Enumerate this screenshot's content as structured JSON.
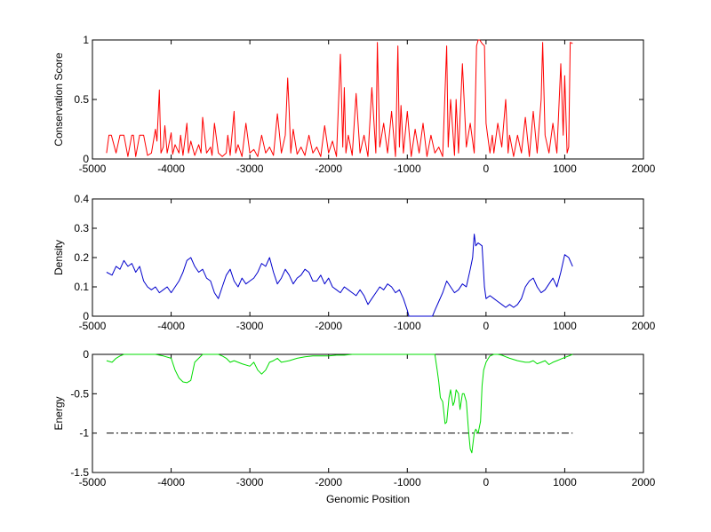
{
  "chart_data": [
    {
      "type": "line",
      "ylabel": "Conservation Score",
      "xlabel": "",
      "xlim": [
        -5000,
        2000
      ],
      "ylim": [
        0,
        1
      ],
      "xticks": [
        -5000,
        -4000,
        -3000,
        -2000,
        -1000,
        0,
        1000,
        2000
      ],
      "xtick_labels": [
        "-5000",
        "-4000",
        "-3000",
        "-2000",
        "-1000",
        "0",
        "1000",
        "2000"
      ],
      "yticks": [
        0,
        0.5,
        1
      ],
      "ytick_labels": [
        "0",
        "0.5",
        "1"
      ],
      "grid": false,
      "series": [
        {
          "color": "#ff0000",
          "x": [
            -4820,
            -4790,
            -4760,
            -4700,
            -4650,
            -4600,
            -4550,
            -4500,
            -4480,
            -4450,
            -4400,
            -4350,
            -4300,
            -4250,
            -4200,
            -4180,
            -4150,
            -4140,
            -4130,
            -4100,
            -4080,
            -4050,
            -4000,
            -3980,
            -3950,
            -3900,
            -3880,
            -3850,
            -3800,
            -3780,
            -3750,
            -3700,
            -3650,
            -3620,
            -3600,
            -3550,
            -3500,
            -3480,
            -3450,
            -3400,
            -3350,
            -3300,
            -3280,
            -3250,
            -3200,
            -3180,
            -3150,
            -3100,
            -3050,
            -3000,
            -2950,
            -2900,
            -2850,
            -2800,
            -2750,
            -2700,
            -2650,
            -2600,
            -2550,
            -2520,
            -2500,
            -2480,
            -2450,
            -2400,
            -2350,
            -2300,
            -2250,
            -2200,
            -2150,
            -2100,
            -2050,
            -2000,
            -1950,
            -1900,
            -1850,
            -1820,
            -1800,
            -1780,
            -1750,
            -1700,
            -1650,
            -1600,
            -1550,
            -1500,
            -1450,
            -1400,
            -1380,
            -1350,
            -1300,
            -1250,
            -1200,
            -1150,
            -1120,
            -1100,
            -1080,
            -1050,
            -1000,
            -950,
            -900,
            -850,
            -800,
            -750,
            -700,
            -650,
            -600,
            -550,
            -500,
            -480,
            -450,
            -400,
            -380,
            -350,
            -300,
            -250,
            -200,
            -150,
            -120,
            -100,
            -80,
            -50,
            -20,
            0,
            20,
            50,
            80,
            100,
            150,
            200,
            250,
            280,
            300,
            350,
            400,
            450,
            500,
            550,
            600,
            650,
            700,
            720,
            750,
            800,
            850,
            900,
            950,
            980,
            1000,
            1030,
            1050,
            1070,
            1100
          ],
          "y": [
            0.05,
            0.2,
            0.2,
            0.05,
            0.2,
            0.2,
            0.02,
            0.2,
            0.2,
            0.02,
            0.2,
            0.2,
            0.03,
            0.05,
            0.25,
            0.15,
            0.58,
            0.3,
            0.05,
            0.1,
            0.28,
            0.05,
            0.22,
            0.04,
            0.12,
            0.05,
            0.2,
            0.03,
            0.3,
            0.05,
            0.15,
            0.03,
            0.12,
            0.05,
            0.35,
            0.05,
            0.1,
            0.03,
            0.3,
            0.05,
            0.02,
            0.05,
            0.2,
            0.03,
            0.4,
            0.05,
            0.12,
            0.02,
            0.3,
            0.05,
            0.08,
            0.02,
            0.2,
            0.05,
            0.1,
            0.03,
            0.38,
            0.05,
            0.2,
            0.68,
            0.4,
            0.05,
            0.25,
            0.04,
            0.1,
            0.03,
            0.2,
            0.05,
            0.1,
            0.02,
            0.28,
            0.05,
            0.15,
            0.02,
            0.88,
            0.1,
            0.6,
            0.05,
            0.2,
            0.03,
            0.55,
            0.05,
            0.2,
            0.02,
            0.6,
            0.05,
            0.98,
            0.1,
            0.3,
            0.05,
            0.4,
            0.02,
            0.95,
            0.1,
            0.45,
            0.05,
            0.4,
            0.02,
            0.25,
            0.05,
            0.3,
            0.02,
            0.2,
            0.05,
            0.1,
            0.02,
            0.95,
            0.1,
            0.5,
            0.03,
            0.5,
            0.05,
            0.8,
            0.1,
            0.3,
            0.05,
            0.95,
            1.0,
            1.0,
            0.97,
            0.95,
            0.3,
            0.2,
            0.05,
            0.2,
            0.05,
            0.3,
            0.1,
            0.5,
            0.05,
            0.2,
            0.02,
            0.2,
            0.05,
            0.35,
            0.02,
            0.4,
            0.05,
            0.5,
            0.98,
            0.2,
            0.05,
            0.3,
            0.05,
            0.8,
            0.2,
            0.7,
            0.05,
            0.1,
            0.98,
            0.97
          ]
        }
      ]
    },
    {
      "type": "line",
      "ylabel": "Density",
      "xlabel": "",
      "xlim": [
        -5000,
        2000
      ],
      "ylim": [
        0,
        0.4
      ],
      "xticks": [
        -5000,
        -4000,
        -3000,
        -2000,
        -1000,
        0,
        1000,
        2000
      ],
      "xtick_labels": [
        "-5000",
        "-4000",
        "-3000",
        "-2000",
        "-1000",
        "0",
        "1000",
        "2000"
      ],
      "yticks": [
        0,
        0.1,
        0.2,
        0.3,
        0.4
      ],
      "ytick_labels": [
        "0",
        "0.1",
        "0.2",
        "0.3",
        "0.4"
      ],
      "grid": false,
      "series": [
        {
          "color": "#0000cc",
          "x": [
            -4820,
            -4750,
            -4700,
            -4650,
            -4600,
            -4550,
            -4500,
            -4450,
            -4400,
            -4350,
            -4300,
            -4250,
            -4200,
            -4150,
            -4100,
            -4050,
            -4000,
            -3950,
            -3900,
            -3850,
            -3800,
            -3750,
            -3700,
            -3650,
            -3600,
            -3550,
            -3500,
            -3450,
            -3400,
            -3350,
            -3300,
            -3250,
            -3200,
            -3150,
            -3100,
            -3050,
            -3000,
            -2950,
            -2900,
            -2850,
            -2800,
            -2750,
            -2700,
            -2650,
            -2600,
            -2550,
            -2500,
            -2450,
            -2400,
            -2350,
            -2300,
            -2250,
            -2200,
            -2150,
            -2100,
            -2050,
            -2000,
            -1950,
            -1900,
            -1850,
            -1800,
            -1750,
            -1700,
            -1650,
            -1600,
            -1550,
            -1500,
            -1450,
            -1400,
            -1350,
            -1300,
            -1250,
            -1200,
            -1150,
            -1100,
            -1050,
            -1000,
            -980,
            -950,
            -680,
            -650,
            -600,
            -550,
            -500,
            -450,
            -400,
            -350,
            -300,
            -250,
            -200,
            -170,
            -150,
            -130,
            -100,
            -50,
            -20,
            0,
            50,
            100,
            150,
            200,
            250,
            300,
            350,
            400,
            450,
            500,
            550,
            600,
            650,
            700,
            750,
            800,
            850,
            900,
            950,
            1000,
            1050,
            1100
          ],
          "y": [
            0.15,
            0.14,
            0.17,
            0.16,
            0.19,
            0.17,
            0.18,
            0.15,
            0.17,
            0.12,
            0.1,
            0.09,
            0.1,
            0.08,
            0.09,
            0.1,
            0.08,
            0.1,
            0.12,
            0.15,
            0.19,
            0.2,
            0.17,
            0.15,
            0.16,
            0.13,
            0.12,
            0.08,
            0.06,
            0.1,
            0.14,
            0.16,
            0.12,
            0.1,
            0.13,
            0.11,
            0.12,
            0.13,
            0.15,
            0.18,
            0.17,
            0.2,
            0.15,
            0.11,
            0.13,
            0.16,
            0.14,
            0.11,
            0.13,
            0.14,
            0.16,
            0.15,
            0.12,
            0.12,
            0.14,
            0.11,
            0.13,
            0.1,
            0.09,
            0.08,
            0.1,
            0.09,
            0.08,
            0.07,
            0.09,
            0.07,
            0.04,
            0.06,
            0.08,
            0.1,
            0.09,
            0.11,
            0.1,
            0.08,
            0.09,
            0.06,
            0.02,
            0.0,
            0.0,
            0.0,
            0.02,
            0.05,
            0.08,
            0.12,
            0.1,
            0.08,
            0.09,
            0.11,
            0.1,
            0.16,
            0.2,
            0.28,
            0.24,
            0.25,
            0.24,
            0.1,
            0.06,
            0.07,
            0.06,
            0.05,
            0.04,
            0.03,
            0.04,
            0.03,
            0.04,
            0.06,
            0.1,
            0.12,
            0.13,
            0.1,
            0.08,
            0.09,
            0.11,
            0.13,
            0.1,
            0.15,
            0.21,
            0.2,
            0.17
          ]
        }
      ]
    },
    {
      "type": "line",
      "ylabel": "Energy",
      "xlabel": "Genomic Position",
      "xlim": [
        -5000,
        2000
      ],
      "ylim": [
        -1.5,
        0
      ],
      "xticks": [
        -5000,
        -4000,
        -3000,
        -2000,
        -1000,
        0,
        1000,
        2000
      ],
      "xtick_labels": [
        "-5000",
        "-4000",
        "-3000",
        "-2000",
        "-1000",
        "0",
        "1000",
        "2000"
      ],
      "yticks": [
        -1.5,
        -1,
        -0.5,
        0
      ],
      "ytick_labels": [
        "-1.5",
        "-1",
        "-0.5",
        "0"
      ],
      "grid": false,
      "series": [
        {
          "color": "#00dd00",
          "x": [
            -4820,
            -4750,
            -4700,
            -4650,
            -4600,
            -4500,
            -4400,
            -4300,
            -4200,
            -4100,
            -4000,
            -3950,
            -3900,
            -3850,
            -3800,
            -3750,
            -3700,
            -3650,
            -3600,
            -3500,
            -3400,
            -3350,
            -3300,
            -3250,
            -3200,
            -3100,
            -3000,
            -2950,
            -2900,
            -2850,
            -2800,
            -2750,
            -2700,
            -2650,
            -2600,
            -2500,
            -2400,
            -2300,
            -2200,
            -2100,
            -2000,
            -1900,
            -1800,
            -1700,
            -1600,
            -1550,
            -650,
            -620,
            -600,
            -580,
            -550,
            -520,
            -500,
            -470,
            -450,
            -420,
            -400,
            -380,
            -350,
            -330,
            -300,
            -280,
            -250,
            -220,
            -200,
            -180,
            -150,
            -130,
            -100,
            -70,
            -50,
            -30,
            0,
            30,
            50,
            100,
            150,
            200,
            250,
            300,
            400,
            500,
            550,
            600,
            650,
            700,
            750,
            800,
            850,
            900,
            950,
            1000,
            1050,
            1100
          ],
          "y": [
            -0.08,
            -0.1,
            -0.05,
            -0.02,
            0,
            0,
            0,
            0,
            0,
            -0.02,
            -0.05,
            -0.2,
            -0.3,
            -0.35,
            -0.36,
            -0.33,
            -0.1,
            -0.05,
            0,
            0,
            0,
            -0.02,
            -0.05,
            -0.1,
            -0.08,
            -0.12,
            -0.15,
            -0.1,
            -0.2,
            -0.25,
            -0.2,
            -0.1,
            -0.08,
            -0.05,
            -0.1,
            -0.08,
            -0.05,
            -0.03,
            -0.02,
            -0.02,
            -0.02,
            -0.01,
            -0.01,
            0,
            0,
            0,
            0,
            -0.2,
            -0.35,
            -0.55,
            -0.6,
            -0.88,
            -0.86,
            -0.55,
            -0.45,
            -0.65,
            -0.6,
            -0.45,
            -0.5,
            -0.7,
            -0.5,
            -0.5,
            -0.6,
            -1.0,
            -1.2,
            -1.25,
            -1.0,
            -0.95,
            -1.0,
            -0.85,
            -0.4,
            -0.2,
            -0.1,
            -0.05,
            -0.02,
            0,
            0,
            -0.01,
            -0.03,
            -0.05,
            -0.08,
            -0.1,
            -0.1,
            -0.08,
            -0.12,
            -0.1,
            -0.08,
            -0.13,
            -0.1,
            -0.08,
            -0.06,
            -0.04,
            -0.02,
            0
          ]
        }
      ],
      "reference_line": {
        "y": -1,
        "x_range": [
          -4820,
          1100
        ],
        "color": "#000000",
        "style": "dash-dot"
      }
    }
  ]
}
